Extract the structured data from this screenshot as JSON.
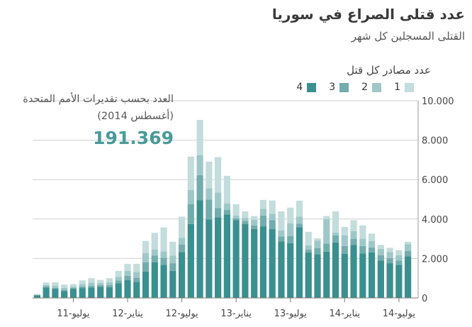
{
  "colors": {
    "src1": "#c3dcdc",
    "src2": "#9ec7c8",
    "src3": "#72acad",
    "src4": "#3a8f8f",
    "accent": "#4a9a9a"
  },
  "chart_data": {
    "type": "bar",
    "stacked": true,
    "title": "عدد قتلى الصراع في سوريا",
    "subtitle": "القتلى المسجلين كل شهر",
    "legend_title": "عدد مصادر كل قتل",
    "legend_placement": "top-right",
    "grid": true,
    "ylim": [
      0,
      10000
    ],
    "y_ticks": [
      {
        "value": 0,
        "label": "0"
      },
      {
        "value": 2000,
        "label": "2.000"
      },
      {
        "value": 4000,
        "label": "4.000"
      },
      {
        "value": 6000,
        "label": "6.000"
      },
      {
        "value": 8000,
        "label": "8.000"
      },
      {
        "value": 10000,
        "label": "10.000"
      }
    ],
    "x_ticks": [
      {
        "index": 4,
        "label": "يوليو-11"
      },
      {
        "index": 10,
        "label": "يناير-12"
      },
      {
        "index": 16,
        "label": "يوليو-12"
      },
      {
        "index": 22,
        "label": "يناير-13"
      },
      {
        "index": 28,
        "label": "يوليو-13"
      },
      {
        "index": 34,
        "label": "يناير-14"
      },
      {
        "index": 40,
        "label": "يوليو-14"
      }
    ],
    "annotation": {
      "text": "العدد بحسب تقديرات الأمم المتحدة (أغسطس 2014)",
      "value": "191.369"
    },
    "series": [
      {
        "name": "1",
        "values": [
          30,
          130,
          170,
          170,
          120,
          190,
          220,
          150,
          210,
          300,
          350,
          410,
          610,
          840,
          1210,
          700,
          1070,
          1700,
          1790,
          1350,
          1800,
          1400,
          580,
          330,
          180,
          450,
          680,
          970,
          790,
          800,
          680,
          110,
          160,
          1080,
          420,
          550,
          680,
          380,
          210,
          210,
          250,
          120
        ]
      },
      {
        "name": "2",
        "values": [
          20,
          60,
          110,
          100,
          70,
          120,
          160,
          100,
          140,
          180,
          250,
          300,
          470,
          320,
          330,
          390,
          340,
          710,
          1010,
          570,
          790,
          330,
          140,
          160,
          290,
          340,
          310,
          310,
          660,
          370,
          220,
          380,
          1240,
          140,
          550,
          390,
          370,
          320,
          320,
          310,
          280,
          350
        ]
      },
      {
        "name": "3",
        "values": [
          20,
          70,
          60,
          60,
          60,
          80,
          100,
          90,
          100,
          150,
          210,
          200,
          470,
          340,
          360,
          390,
          380,
          1010,
          1270,
          1010,
          460,
          230,
          80,
          160,
          180,
          550,
          450,
          240,
          350,
          170,
          140,
          320,
          410,
          360,
          400,
          310,
          370,
          250,
          260,
          260,
          210,
          270
        ]
      },
      {
        "name": "4",
        "values": [
          130,
          520,
          450,
          350,
          450,
          500,
          520,
          570,
          550,
          740,
          910,
          820,
          1340,
          1800,
          1670,
          1370,
          2330,
          3750,
          4960,
          3980,
          4090,
          4230,
          3950,
          3740,
          3500,
          3630,
          3500,
          2870,
          2780,
          3590,
          2310,
          2210,
          2340,
          2810,
          2230,
          2690,
          2260,
          2310,
          1900,
          1760,
          1680,
          2110
        ]
      }
    ]
  }
}
